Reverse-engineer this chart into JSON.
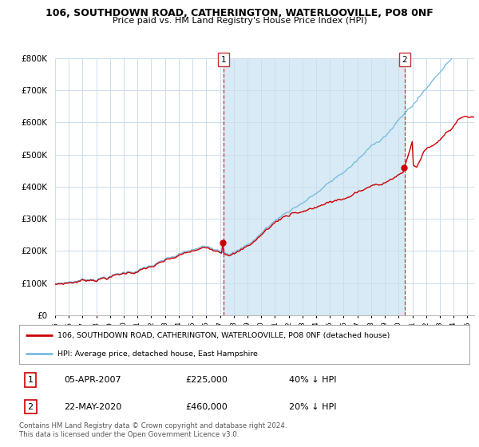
{
  "title_line1": "106, SOUTHDOWN ROAD, CATHERINGTON, WATERLOOVILLE, PO8 0NF",
  "title_line2": "Price paid vs. HM Land Registry's House Price Index (HPI)",
  "ylim": [
    0,
    800000
  ],
  "yticks": [
    0,
    100000,
    200000,
    300000,
    400000,
    500000,
    600000,
    700000,
    800000
  ],
  "ytick_labels": [
    "£0",
    "£100K",
    "£200K",
    "£300K",
    "£400K",
    "£500K",
    "£600K",
    "£700K",
    "£800K"
  ],
  "hpi_color": "#7bbcde",
  "hpi_fill_color": "#d8eaf5",
  "price_color": "#cc0000",
  "sale1_year": 2007.25,
  "sale1_price": 225000,
  "sale2_year": 2020.42,
  "sale2_price": 460000,
  "legend_line1": "106, SOUTHDOWN ROAD, CATHERINGTON, WATERLOOVILLE, PO8 0NF (detached house)",
  "legend_line2": "HPI: Average price, detached house, East Hampshire",
  "annotation1": [
    "1",
    "05-APR-2007",
    "£225,000",
    "40% ↓ HPI"
  ],
  "annotation2": [
    "2",
    "22-MAY-2020",
    "£460,000",
    "20% ↓ HPI"
  ],
  "footnote": "Contains HM Land Registry data © Crown copyright and database right 2024.\nThis data is licensed under the Open Government Licence v3.0.",
  "grid_color": "#ccddee",
  "xstart": 1995,
  "xend": 2025.5
}
